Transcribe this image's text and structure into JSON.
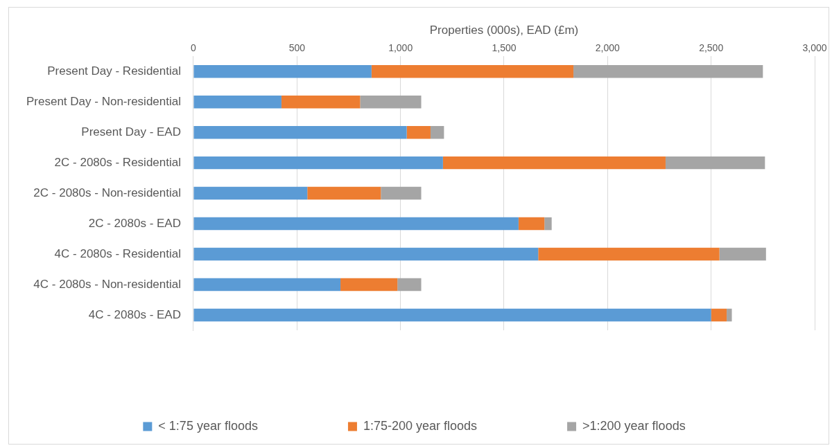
{
  "chart_data": {
    "type": "bar",
    "orientation": "horizontal",
    "stacked": true,
    "xlabel": "Properties (000s), EAD (£m)",
    "categories": [
      "Present Day - Residential",
      "Present Day - Non-residential",
      "Present Day - EAD",
      "2C - 2080s - Residential",
      "2C - 2080s - Non-residential",
      "2C - 2080s - EAD",
      "4C - 2080s - Residential",
      "4C - 2080s - Non-residential",
      "4C - 2080s - EAD"
    ],
    "series": [
      {
        "name": "< 1:75 year floods",
        "color": "#5b9bd5",
        "values": [
          860,
          425,
          1030,
          1205,
          550,
          1570,
          1665,
          710,
          2500
        ]
      },
      {
        "name": "1:75-200 year floods",
        "color": "#ed7d31",
        "values": [
          975,
          380,
          115,
          1075,
          355,
          125,
          875,
          275,
          75
        ]
      },
      {
        "name": ">1:200 year floods",
        "color": "#a5a5a5",
        "values": [
          915,
          295,
          65,
          480,
          195,
          35,
          225,
          115,
          25
        ]
      }
    ],
    "xlim": [
      0,
      3000
    ],
    "xticks": [
      {
        "value": 0,
        "label": "0"
      },
      {
        "value": 500,
        "label": "500"
      },
      {
        "value": 1000,
        "label": "1,000"
      },
      {
        "value": 1500,
        "label": "1,500"
      },
      {
        "value": 2000,
        "label": "2,000"
      },
      {
        "value": 2500,
        "label": "2,500"
      },
      {
        "value": 3000,
        "label": "3,000"
      }
    ],
    "grid": "x",
    "legend": "bottom"
  }
}
